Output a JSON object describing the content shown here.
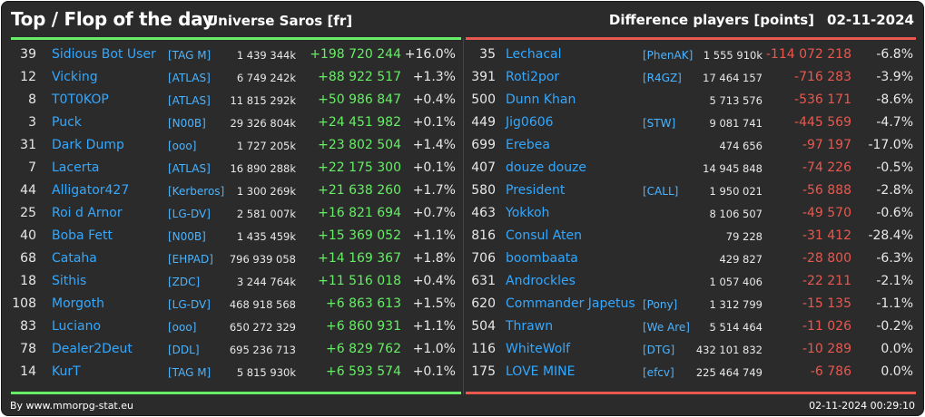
{
  "header": {
    "title": "Top / Flop of the day",
    "universe": "Universe Saros [fr]",
    "metric": "Difference players [points]",
    "date": "02-11-2024"
  },
  "colors": {
    "up": "#66ee66",
    "down": "#e8584f",
    "name": "#33a8ff",
    "background": "#2b2b2b"
  },
  "top": [
    {
      "rank": "39",
      "name": "Sidious Bot User",
      "tag": "[TAG M]",
      "points": "1 439 344k",
      "diff": "+198 720 244",
      "pct": "+16.0%"
    },
    {
      "rank": "12",
      "name": "Vicking",
      "tag": "[ATLAS]",
      "points": "6 749 242k",
      "diff": "+88 922 517",
      "pct": "+1.3%"
    },
    {
      "rank": "8",
      "name": "T0T0KOP",
      "tag": "[ATLAS]",
      "points": "11 815 292k",
      "diff": "+50 986 847",
      "pct": "+0.4%"
    },
    {
      "rank": "3",
      "name": "Puck",
      "tag": "[N00B]",
      "points": "29 326 804k",
      "diff": "+24 451 982",
      "pct": "+0.1%"
    },
    {
      "rank": "31",
      "name": "Dark Dump",
      "tag": "[ooo]",
      "points": "1 727 205k",
      "diff": "+23 802 504",
      "pct": "+1.4%"
    },
    {
      "rank": "7",
      "name": "Lacerta",
      "tag": "[ATLAS]",
      "points": "16 890 288k",
      "diff": "+22 175 300",
      "pct": "+0.1%"
    },
    {
      "rank": "44",
      "name": "Alligator427",
      "tag": "[Kerberos]",
      "points": "1 300 269k",
      "diff": "+21 638 260",
      "pct": "+1.7%"
    },
    {
      "rank": "25",
      "name": "Roi d Arnor",
      "tag": "[LG-DV]",
      "points": "2 581 007k",
      "diff": "+16 821 694",
      "pct": "+0.7%"
    },
    {
      "rank": "40",
      "name": "Boba Fett",
      "tag": "[N00B]",
      "points": "1 435 459k",
      "diff": "+15 369 052",
      "pct": "+1.1%"
    },
    {
      "rank": "68",
      "name": "Cataha",
      "tag": "[EHPAD]",
      "points": "796 939 058",
      "diff": "+14 169 367",
      "pct": "+1.8%"
    },
    {
      "rank": "18",
      "name": "Sithis",
      "tag": "[ZDC]",
      "points": "3 244 764k",
      "diff": "+11 516 018",
      "pct": "+0.4%"
    },
    {
      "rank": "108",
      "name": "Morgoth",
      "tag": "[LG-DV]",
      "points": "468 918 568",
      "diff": "+6 863 613",
      "pct": "+1.5%"
    },
    {
      "rank": "83",
      "name": "Luciano",
      "tag": "[ooo]",
      "points": "650 272 329",
      "diff": "+6 860 931",
      "pct": "+1.1%"
    },
    {
      "rank": "78",
      "name": "Dealer2Deut",
      "tag": "[DDL]",
      "points": "695 236 713",
      "diff": "+6 829 762",
      "pct": "+1.0%"
    },
    {
      "rank": "14",
      "name": "KurT",
      "tag": "[TAG M]",
      "points": "5 815 930k",
      "diff": "+6 593 574",
      "pct": "+0.1%"
    }
  ],
  "flop": [
    {
      "rank": "35",
      "name": "Lechacal",
      "tag": "[PhenAK]",
      "points": "1 555 910k",
      "diff": "-114 072 218",
      "pct": "-6.8%"
    },
    {
      "rank": "391",
      "name": "Roti2por",
      "tag": "[R4GZ]",
      "points": "17 464 157",
      "diff": "-716 283",
      "pct": "-3.9%"
    },
    {
      "rank": "500",
      "name": "Dunn Khan",
      "tag": "",
      "points": "5 713 576",
      "diff": "-536 171",
      "pct": "-8.6%"
    },
    {
      "rank": "449",
      "name": "Jig0606",
      "tag": "[STW]",
      "points": "9 081 741",
      "diff": "-445 569",
      "pct": "-4.7%"
    },
    {
      "rank": "699",
      "name": "Erebea",
      "tag": "",
      "points": "474 656",
      "diff": "-97 197",
      "pct": "-17.0%"
    },
    {
      "rank": "407",
      "name": "douze douze",
      "tag": "",
      "points": "14 945 848",
      "diff": "-74 226",
      "pct": "-0.5%"
    },
    {
      "rank": "580",
      "name": "President",
      "tag": "[CALL]",
      "points": "1 950 021",
      "diff": "-56 888",
      "pct": "-2.8%"
    },
    {
      "rank": "463",
      "name": "Yokkoh",
      "tag": "",
      "points": "8 106 507",
      "diff": "-49 570",
      "pct": "-0.6%"
    },
    {
      "rank": "816",
      "name": "Consul Aten",
      "tag": "",
      "points": "79 228",
      "diff": "-31 412",
      "pct": "-28.4%"
    },
    {
      "rank": "706",
      "name": "boombaata",
      "tag": "",
      "points": "429 827",
      "diff": "-28 800",
      "pct": "-6.3%"
    },
    {
      "rank": "631",
      "name": "Androckles",
      "tag": "",
      "points": "1 057 406",
      "diff": "-22 211",
      "pct": "-2.1%"
    },
    {
      "rank": "620",
      "name": "Commander Japetus",
      "tag": "[Pony]",
      "points": "1 312 799",
      "diff": "-15 135",
      "pct": "-1.1%"
    },
    {
      "rank": "504",
      "name": "Thrawn",
      "tag": "[We Are]",
      "points": "5 514 464",
      "diff": "-11 026",
      "pct": "-0.2%"
    },
    {
      "rank": "116",
      "name": "WhiteWolf",
      "tag": "[DTG]",
      "points": "432 101 832",
      "diff": "-10 289",
      "pct": "0.0%"
    },
    {
      "rank": "175",
      "name": "LOVE MINE",
      "tag": "[efcv]",
      "points": "225 464 749",
      "diff": "-6 786",
      "pct": "0.0%"
    }
  ],
  "footer": {
    "credit": "By www.mmorpg-stat.eu",
    "timestamp": "02-11-2024 00:29:10"
  }
}
